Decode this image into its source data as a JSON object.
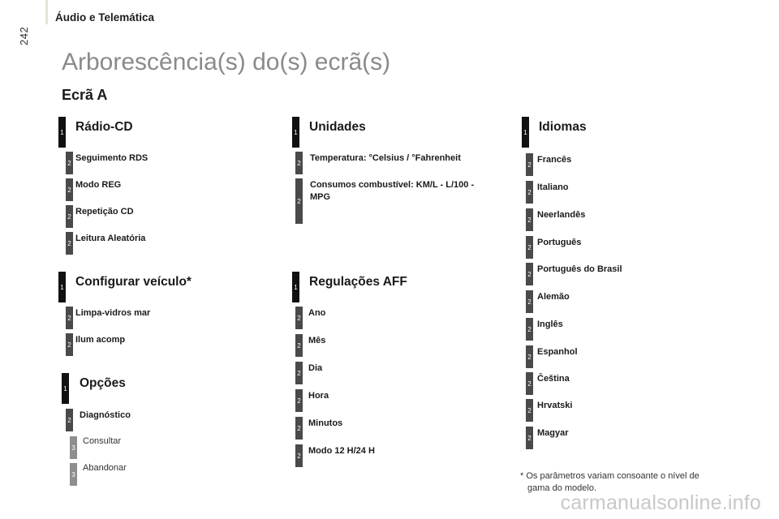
{
  "header": {
    "page_number": "242",
    "section": "Áudio e Telemática"
  },
  "title": "Arborescência(s) do(s) ecrã(s)",
  "screen": "Ecrã A",
  "menus": {
    "radio": {
      "level": "1",
      "title": "Rádio-CD",
      "items": [
        {
          "level": "2",
          "label": "Seguimento RDS"
        },
        {
          "level": "2",
          "label": "Modo REG"
        },
        {
          "level": "2",
          "label": "Repetição CD"
        },
        {
          "level": "2",
          "label": "Leitura Aleatória"
        }
      ]
    },
    "vehicle": {
      "level": "1",
      "title": "Configurar veículo*",
      "items": [
        {
          "level": "2",
          "label": "Limpa-vidros mar"
        },
        {
          "level": "2",
          "label": "Ilum acomp"
        }
      ]
    },
    "options": {
      "level": "1",
      "title": "Opções",
      "items": [
        {
          "level": "2",
          "label": "Diagnóstico"
        },
        {
          "level": "3",
          "label": "Consultar"
        },
        {
          "level": "3",
          "label": "Abandonar"
        }
      ]
    },
    "units": {
      "level": "1",
      "title": "Unidades",
      "items": [
        {
          "level": "2",
          "label": "Temperatura: °Celsius / °Fahrenheit"
        },
        {
          "level": "2",
          "label_line1": "Consumos combustível: KM/L - L/100 -",
          "label_line2": "MPG"
        }
      ]
    },
    "aff": {
      "level": "1",
      "title": "Regulações AFF",
      "items": [
        {
          "level": "2",
          "label": "Ano"
        },
        {
          "level": "2",
          "label": "Mês"
        },
        {
          "level": "2",
          "label": "Dia"
        },
        {
          "level": "2",
          "label": "Hora"
        },
        {
          "level": "2",
          "label": "Minutos"
        },
        {
          "level": "2",
          "label": "Modo 12 H/24 H"
        }
      ]
    },
    "languages": {
      "level": "1",
      "title": "Idiomas",
      "items": [
        {
          "level": "2",
          "label": "Francês"
        },
        {
          "level": "2",
          "label": "Italiano"
        },
        {
          "level": "2",
          "label": "Neerlandês"
        },
        {
          "level": "2",
          "label": "Português"
        },
        {
          "level": "2",
          "label": "Português do Brasil"
        },
        {
          "level": "2",
          "label": "Alemão"
        },
        {
          "level": "2",
          "label": "Inglês"
        },
        {
          "level": "2",
          "label": "Espanhol"
        },
        {
          "level": "2",
          "label": "Čeština"
        },
        {
          "level": "2",
          "label": "Hrvatski"
        },
        {
          "level": "2",
          "label": "Magyar"
        }
      ]
    }
  },
  "footnote": {
    "line1": "* Os parâmetros variam consoante o nível de",
    "line2": "gama do modelo."
  },
  "watermark": "carmanualsonline.info"
}
